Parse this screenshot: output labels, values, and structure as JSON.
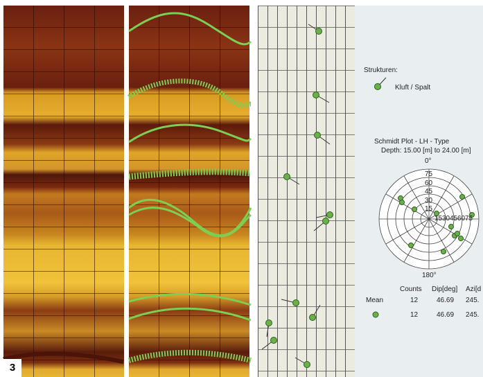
{
  "figure_label": "3",
  "legend": {
    "title": "Strukturen:",
    "items": [
      "Kluft / Spalt"
    ]
  },
  "stereonet": {
    "title": "Schmidt Plot - LH - Type",
    "subtitle": "Depth: 15.00 [m] to 24.00 [m]",
    "north": "0°",
    "south": "180°",
    "radial_ticks": [
      "75",
      "60",
      "45",
      "30",
      "15"
    ],
    "horizontal_ticks": [
      "15",
      "30",
      "45",
      "60",
      "75"
    ]
  },
  "table": {
    "headers": [
      "Counts",
      "Dip[deg]",
      "Azi[d"
    ],
    "rows": [
      [
        "Mean",
        "12",
        "46.69",
        "245."
      ],
      [
        "",
        "12",
        "46.69",
        "245."
      ]
    ]
  }
}
